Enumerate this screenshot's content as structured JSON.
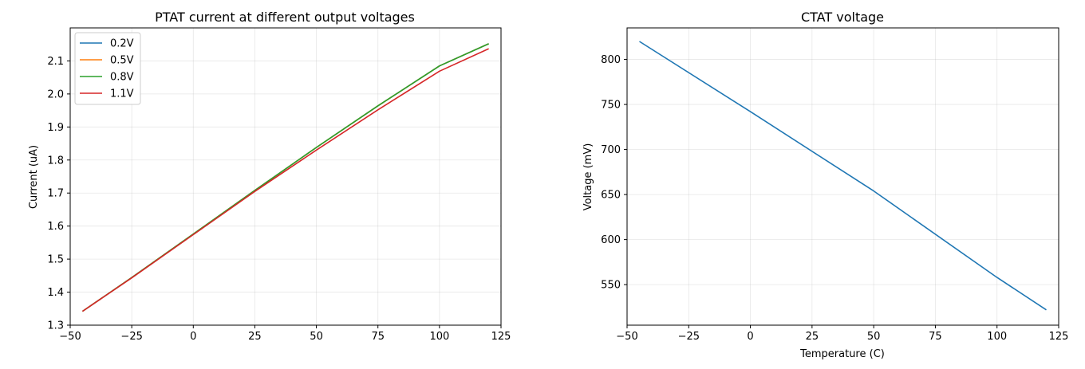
{
  "chart_data": [
    {
      "type": "line",
      "title": "PTAT current at different output voltages",
      "xlabel": "",
      "ylabel": "Current (uA)",
      "xlim": [
        -50,
        125
      ],
      "ylim": [
        1.3,
        2.2
      ],
      "xticks": [
        -50,
        -25,
        0,
        25,
        50,
        75,
        100,
        125
      ],
      "yticks": [
        1.3,
        1.4,
        1.5,
        1.6,
        1.7,
        1.8,
        1.9,
        2.0,
        2.1
      ],
      "xtick_labels": [
        "−50",
        "−25",
        "0",
        "25",
        "50",
        "75",
        "100",
        "125"
      ],
      "ytick_labels": [
        "1.3",
        "1.4",
        "1.5",
        "1.6",
        "1.7",
        "1.8",
        "1.9",
        "2.0",
        "2.1"
      ],
      "grid": true,
      "legend_position": "upper-left",
      "x": [
        -45,
        -25,
        0,
        25,
        50,
        75,
        100,
        120
      ],
      "series": [
        {
          "name": "0.2V",
          "color": "#1f77b4",
          "values": [
            1.342,
            1.444,
            1.576,
            1.708,
            1.838,
            1.964,
            2.085,
            2.152
          ]
        },
        {
          "name": "0.5V",
          "color": "#ff7f0e",
          "values": [
            1.342,
            1.444,
            1.576,
            1.708,
            1.838,
            1.964,
            2.085,
            2.152
          ]
        },
        {
          "name": "0.8V",
          "color": "#2ca02c",
          "values": [
            1.342,
            1.444,
            1.576,
            1.708,
            1.838,
            1.964,
            2.085,
            2.152
          ]
        },
        {
          "name": "1.1V",
          "color": "#d62728",
          "values": [
            1.342,
            1.443,
            1.574,
            1.705,
            1.83,
            1.952,
            2.069,
            2.137
          ]
        }
      ]
    },
    {
      "type": "line",
      "title": "CTAT voltage",
      "xlabel": "Temperature (C)",
      "ylabel": "Voltage (mV)",
      "xlim": [
        -50,
        125
      ],
      "ylim": [
        505,
        835
      ],
      "xticks": [
        -50,
        -25,
        0,
        25,
        50,
        75,
        100,
        125
      ],
      "yticks": [
        550,
        600,
        650,
        700,
        750,
        800
      ],
      "xtick_labels": [
        "−50",
        "−25",
        "0",
        "25",
        "50",
        "75",
        "100",
        "125"
      ],
      "ytick_labels": [
        "550",
        "600",
        "650",
        "700",
        "750",
        "800"
      ],
      "grid": true,
      "x": [
        -45,
        0,
        50,
        100,
        120
      ],
      "series": [
        {
          "name": "",
          "color": "#1f77b4",
          "values": [
            820,
            742,
            654,
            558,
            522
          ]
        }
      ]
    }
  ]
}
